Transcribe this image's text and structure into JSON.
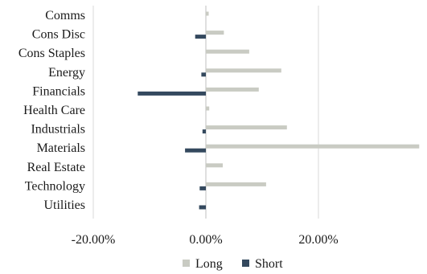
{
  "chart_data": {
    "type": "bar",
    "orientation": "horizontal",
    "categories": [
      "Comms",
      "Cons Disc",
      "Cons Staples",
      "Energy",
      "Financials",
      "Health Care",
      "Industrials",
      "Materials",
      "Real Estate",
      "Technology",
      "Utilities"
    ],
    "series": [
      {
        "name": "Long",
        "color": "#c9cbc3",
        "values": [
          0.5,
          3.2,
          7.7,
          13.4,
          9.4,
          0.6,
          14.4,
          37.9,
          3.0,
          10.7,
          0.0
        ]
      },
      {
        "name": "Short",
        "color": "#34495e",
        "values": [
          0.0,
          -1.9,
          0.0,
          -0.8,
          -12.1,
          0.0,
          -0.6,
          -3.7,
          0.0,
          -1.1,
          -1.2
        ]
      }
    ],
    "x_ticks": [
      "-20.00%",
      "0.00%",
      "20.00%"
    ],
    "x_tick_values": [
      -20,
      0,
      20
    ],
    "xlim": [
      -20,
      38
    ],
    "grid": "vertical",
    "legend_position": "bottom",
    "title": "",
    "xlabel": "",
    "ylabel": ""
  }
}
